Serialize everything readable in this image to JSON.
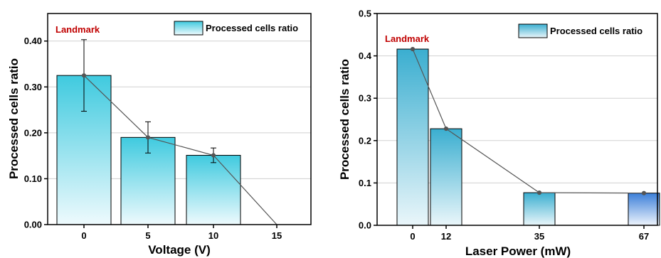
{
  "chart_data": [
    {
      "type": "bar",
      "categories": [
        "0",
        "5",
        "10"
      ],
      "values": [
        0.325,
        0.19,
        0.151
      ],
      "error": [
        0.078,
        0.034,
        0.016
      ],
      "trend_line": {
        "x": [
          "0",
          "5",
          "10",
          "15"
        ],
        "y": [
          0.325,
          0.19,
          0.151,
          0.0
        ]
      },
      "x_ticks": [
        "0",
        "5",
        "10",
        "15"
      ],
      "y_ticks": [
        0.0,
        0.1,
        0.2,
        0.3,
        0.4
      ],
      "y_tick_labels": [
        "0.00",
        "0.10",
        "0.20",
        "0.30",
        "0.40"
      ],
      "ylim": [
        0,
        0.46
      ],
      "xlabel": "Voltage (V)",
      "ylabel": "Processed cells ratio",
      "series": [
        {
          "name": "Processed cells ratio"
        }
      ],
      "annotation": "Landmark",
      "legend_position": "top-right",
      "grid": "horizontal",
      "colors": {
        "bar_top": "#3fcadf",
        "bar_bottom": "#eefafd",
        "annotation": "#c00000",
        "line": "#555555"
      }
    },
    {
      "type": "bar",
      "categories": [
        "0",
        "12",
        "35",
        "67"
      ],
      "values": [
        0.416,
        0.228,
        0.077,
        0.076
      ],
      "trend_line": {
        "x": [
          "0",
          "12",
          "35",
          "67"
        ],
        "y": [
          0.416,
          0.228,
          0.077,
          0.076
        ]
      },
      "x_ticks": [
        "0",
        "12",
        "35",
        "67"
      ],
      "y_ticks": [
        0.0,
        0.1,
        0.2,
        0.3,
        0.4,
        0.5
      ],
      "y_tick_labels": [
        "0.0",
        "0.1",
        "0.2",
        "0.3",
        "0.4",
        "0.5"
      ],
      "ylim": [
        0,
        0.5
      ],
      "xlabel": "Laser Power (mW)",
      "ylabel": "Processed cells ratio",
      "series": [
        {
          "name": "Processed cells ratio"
        }
      ],
      "annotation": "Landmark",
      "legend_position": "top-right",
      "grid": "horizontal",
      "colors": {
        "bar_top": "#3aaed0",
        "bar_bottom": "#eaf6fa",
        "last_bar_top": "#3b7fd9",
        "annotation": "#c00000",
        "line": "#555555"
      }
    }
  ]
}
